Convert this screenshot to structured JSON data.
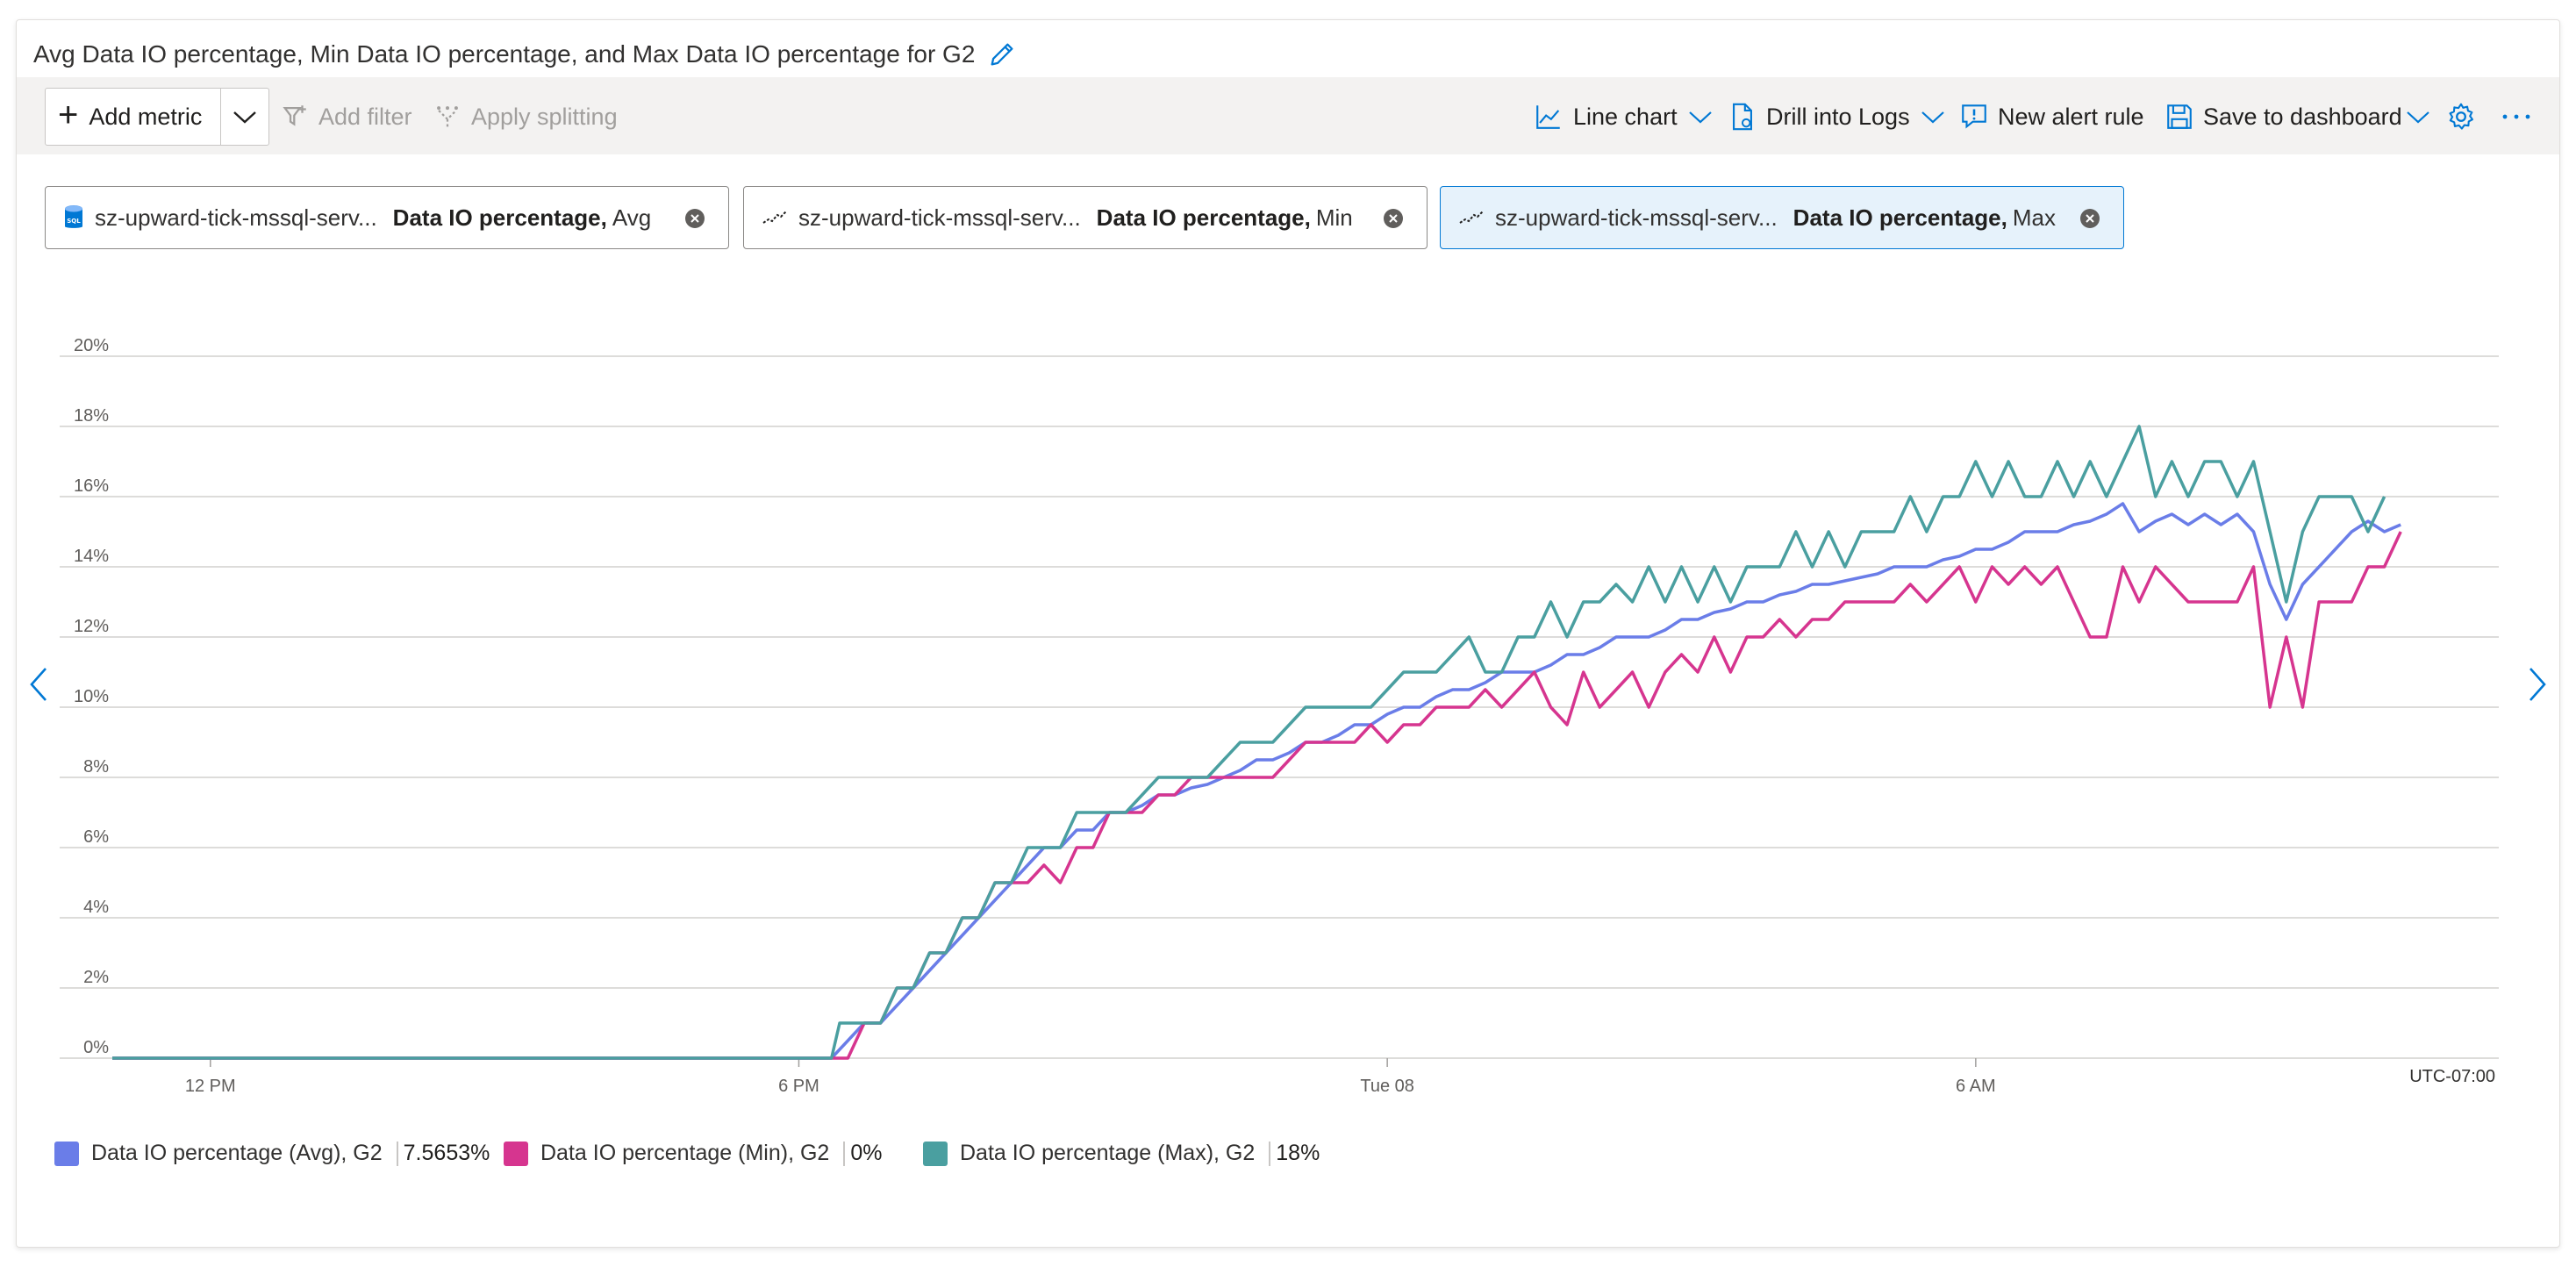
{
  "title": "Avg Data IO percentage, Min Data IO percentage, and Max Data IO percentage for G2",
  "icons": {
    "edit": "pencil-icon",
    "more": "ellipsis-icon",
    "settings": "gear-icon"
  },
  "toolbar": {
    "add_metric": "Add metric",
    "add_filter": "Add filter",
    "apply_splitting": "Apply splitting",
    "line_chart": "Line chart",
    "drill_into_logs": "Drill into Logs",
    "new_alert_rule": "New alert rule",
    "save_to_dashboard": "Save to dashboard"
  },
  "pills": [
    {
      "resource": "sz-upward-tick-mssql-serv...",
      "metric": "Data IO percentage,",
      "agg": "Avg",
      "icon": "sql-database-icon",
      "active": false
    },
    {
      "resource": "sz-upward-tick-mssql-serv...",
      "metric": "Data IO percentage,",
      "agg": "Min",
      "icon": "metric-line-icon",
      "active": false
    },
    {
      "resource": "sz-upward-tick-mssql-serv...",
      "metric": "Data IO percentage,",
      "agg": "Max",
      "icon": "metric-line-icon",
      "active": true
    }
  ],
  "timezone": "UTC-07:00",
  "legend": [
    {
      "label": "Data IO percentage (Avg), G2",
      "value": "7.5653%",
      "color": "#6a7de8"
    },
    {
      "label": "Data IO percentage (Min), G2",
      "value": "0%",
      "color": "#d6358f"
    },
    {
      "label": "Data IO percentage (Max), G2",
      "value": "18%",
      "color": "#4a9fa0"
    }
  ],
  "chart_data": {
    "type": "line",
    "x_ticks": [
      {
        "label": "12 PM",
        "t": 60
      },
      {
        "label": "6 PM",
        "t": 420
      },
      {
        "label": "Tue 08",
        "t": 780
      },
      {
        "label": "6 AM",
        "t": 1140
      }
    ],
    "y_ticks": [
      "0%",
      "2%",
      "4%",
      "6%",
      "8%",
      "10%",
      "12%",
      "14%",
      "16%",
      "18%",
      "20%"
    ],
    "ylim": [
      0,
      20
    ],
    "xlim": [
      0,
      1460
    ],
    "grid": true,
    "series": [
      {
        "name": "Data IO percentage (Avg), G2",
        "color": "#6a7de8",
        "points": [
          [
            0,
            0
          ],
          [
            440,
            0
          ],
          [
            450,
            0.5
          ],
          [
            460,
            1
          ],
          [
            470,
            1
          ],
          [
            480,
            1.5
          ],
          [
            490,
            2
          ],
          [
            500,
            2.5
          ],
          [
            510,
            3
          ],
          [
            520,
            3.5
          ],
          [
            530,
            4
          ],
          [
            540,
            4.5
          ],
          [
            550,
            5
          ],
          [
            560,
            5.5
          ],
          [
            570,
            6
          ],
          [
            580,
            6
          ],
          [
            590,
            6.5
          ],
          [
            600,
            6.5
          ],
          [
            610,
            7
          ],
          [
            620,
            7
          ],
          [
            630,
            7.2
          ],
          [
            640,
            7.5
          ],
          [
            650,
            7.5
          ],
          [
            660,
            7.7
          ],
          [
            670,
            7.8
          ],
          [
            680,
            8
          ],
          [
            690,
            8.2
          ],
          [
            700,
            8.5
          ],
          [
            710,
            8.5
          ],
          [
            720,
            8.7
          ],
          [
            730,
            9
          ],
          [
            740,
            9
          ],
          [
            750,
            9.2
          ],
          [
            760,
            9.5
          ],
          [
            770,
            9.5
          ],
          [
            780,
            9.8
          ],
          [
            790,
            10
          ],
          [
            800,
            10
          ],
          [
            810,
            10.3
          ],
          [
            820,
            10.5
          ],
          [
            830,
            10.5
          ],
          [
            840,
            10.7
          ],
          [
            850,
            11
          ],
          [
            860,
            11
          ],
          [
            870,
            11
          ],
          [
            880,
            11.2
          ],
          [
            890,
            11.5
          ],
          [
            900,
            11.5
          ],
          [
            910,
            11.7
          ],
          [
            920,
            12
          ],
          [
            930,
            12
          ],
          [
            940,
            12
          ],
          [
            950,
            12.2
          ],
          [
            960,
            12.5
          ],
          [
            970,
            12.5
          ],
          [
            980,
            12.7
          ],
          [
            990,
            12.8
          ],
          [
            1000,
            13
          ],
          [
            1010,
            13
          ],
          [
            1020,
            13.2
          ],
          [
            1030,
            13.3
          ],
          [
            1040,
            13.5
          ],
          [
            1050,
            13.5
          ],
          [
            1060,
            13.6
          ],
          [
            1070,
            13.7
          ],
          [
            1080,
            13.8
          ],
          [
            1090,
            14
          ],
          [
            1100,
            14
          ],
          [
            1110,
            14
          ],
          [
            1120,
            14.2
          ],
          [
            1130,
            14.3
          ],
          [
            1140,
            14.5
          ],
          [
            1150,
            14.5
          ],
          [
            1160,
            14.7
          ],
          [
            1170,
            15
          ],
          [
            1180,
            15
          ],
          [
            1190,
            15
          ],
          [
            1200,
            15.2
          ],
          [
            1210,
            15.3
          ],
          [
            1220,
            15.5
          ],
          [
            1230,
            15.8
          ],
          [
            1240,
            15
          ],
          [
            1250,
            15.3
          ],
          [
            1260,
            15.5
          ],
          [
            1270,
            15.2
          ],
          [
            1280,
            15.5
          ],
          [
            1290,
            15.2
          ],
          [
            1300,
            15.5
          ],
          [
            1310,
            15
          ],
          [
            1320,
            13.5
          ],
          [
            1330,
            12.5
          ],
          [
            1340,
            13.5
          ],
          [
            1350,
            14
          ],
          [
            1360,
            14.5
          ],
          [
            1370,
            15
          ],
          [
            1380,
            15.3
          ],
          [
            1390,
            15
          ],
          [
            1400,
            15.2
          ]
        ]
      },
      {
        "name": "Data IO percentage (Min), G2",
        "color": "#d6358f",
        "points": [
          [
            0,
            0
          ],
          [
            450,
            0
          ],
          [
            460,
            1
          ],
          [
            470,
            1
          ],
          [
            480,
            2
          ],
          [
            490,
            2
          ],
          [
            500,
            3
          ],
          [
            510,
            3
          ],
          [
            520,
            4
          ],
          [
            530,
            4
          ],
          [
            540,
            5
          ],
          [
            550,
            5
          ],
          [
            560,
            5
          ],
          [
            570,
            5.5
          ],
          [
            580,
            5
          ],
          [
            590,
            6
          ],
          [
            600,
            6
          ],
          [
            610,
            7
          ],
          [
            620,
            7
          ],
          [
            630,
            7
          ],
          [
            640,
            7.5
          ],
          [
            650,
            7.5
          ],
          [
            660,
            8
          ],
          [
            670,
            8
          ],
          [
            680,
            8
          ],
          [
            690,
            8
          ],
          [
            700,
            8
          ],
          [
            710,
            8
          ],
          [
            720,
            8.5
          ],
          [
            730,
            9
          ],
          [
            740,
            9
          ],
          [
            750,
            9
          ],
          [
            760,
            9
          ],
          [
            770,
            9.5
          ],
          [
            780,
            9
          ],
          [
            790,
            9.5
          ],
          [
            800,
            9.5
          ],
          [
            810,
            10
          ],
          [
            820,
            10
          ],
          [
            830,
            10
          ],
          [
            840,
            10.5
          ],
          [
            850,
            10
          ],
          [
            860,
            10.5
          ],
          [
            870,
            11
          ],
          [
            880,
            10
          ],
          [
            890,
            9.5
          ],
          [
            900,
            11
          ],
          [
            910,
            10
          ],
          [
            920,
            10.5
          ],
          [
            930,
            11
          ],
          [
            940,
            10
          ],
          [
            950,
            11
          ],
          [
            960,
            11.5
          ],
          [
            970,
            11
          ],
          [
            980,
            12
          ],
          [
            990,
            11
          ],
          [
            1000,
            12
          ],
          [
            1010,
            12
          ],
          [
            1020,
            12.5
          ],
          [
            1030,
            12
          ],
          [
            1040,
            12.5
          ],
          [
            1050,
            12.5
          ],
          [
            1060,
            13
          ],
          [
            1070,
            13
          ],
          [
            1080,
            13
          ],
          [
            1090,
            13
          ],
          [
            1100,
            13.5
          ],
          [
            1110,
            13
          ],
          [
            1120,
            13.5
          ],
          [
            1130,
            14
          ],
          [
            1140,
            13
          ],
          [
            1150,
            14
          ],
          [
            1160,
            13.5
          ],
          [
            1170,
            14
          ],
          [
            1180,
            13.5
          ],
          [
            1190,
            14
          ],
          [
            1200,
            13
          ],
          [
            1210,
            12
          ],
          [
            1220,
            12
          ],
          [
            1230,
            14
          ],
          [
            1240,
            13
          ],
          [
            1250,
            14
          ],
          [
            1260,
            13.5
          ],
          [
            1270,
            13
          ],
          [
            1280,
            13
          ],
          [
            1290,
            13
          ],
          [
            1300,
            13
          ],
          [
            1310,
            14
          ],
          [
            1320,
            10
          ],
          [
            1330,
            12
          ],
          [
            1340,
            10
          ],
          [
            1350,
            13
          ],
          [
            1360,
            13
          ],
          [
            1370,
            13
          ],
          [
            1380,
            14
          ],
          [
            1390,
            14
          ],
          [
            1400,
            15
          ]
        ]
      },
      {
        "name": "Data IO percentage (Max), G2",
        "color": "#4a9fa0",
        "points": [
          [
            0,
            0
          ],
          [
            440,
            0
          ],
          [
            445,
            1
          ],
          [
            460,
            1
          ],
          [
            470,
            1
          ],
          [
            480,
            2
          ],
          [
            490,
            2
          ],
          [
            500,
            3
          ],
          [
            510,
            3
          ],
          [
            520,
            4
          ],
          [
            530,
            4
          ],
          [
            540,
            5
          ],
          [
            550,
            5
          ],
          [
            560,
            6
          ],
          [
            570,
            6
          ],
          [
            580,
            6
          ],
          [
            590,
            7
          ],
          [
            600,
            7
          ],
          [
            610,
            7
          ],
          [
            620,
            7
          ],
          [
            630,
            7.5
          ],
          [
            640,
            8
          ],
          [
            650,
            8
          ],
          [
            660,
            8
          ],
          [
            670,
            8
          ],
          [
            680,
            8.5
          ],
          [
            690,
            9
          ],
          [
            700,
            9
          ],
          [
            710,
            9
          ],
          [
            720,
            9.5
          ],
          [
            730,
            10
          ],
          [
            740,
            10
          ],
          [
            750,
            10
          ],
          [
            760,
            10
          ],
          [
            770,
            10
          ],
          [
            780,
            10.5
          ],
          [
            790,
            11
          ],
          [
            800,
            11
          ],
          [
            810,
            11
          ],
          [
            820,
            11.5
          ],
          [
            830,
            12
          ],
          [
            840,
            11
          ],
          [
            850,
            11
          ],
          [
            860,
            12
          ],
          [
            870,
            12
          ],
          [
            880,
            13
          ],
          [
            890,
            12
          ],
          [
            900,
            13
          ],
          [
            910,
            13
          ],
          [
            920,
            13.5
          ],
          [
            930,
            13
          ],
          [
            940,
            14
          ],
          [
            950,
            13
          ],
          [
            960,
            14
          ],
          [
            970,
            13
          ],
          [
            980,
            14
          ],
          [
            990,
            13
          ],
          [
            1000,
            14
          ],
          [
            1010,
            14
          ],
          [
            1020,
            14
          ],
          [
            1030,
            15
          ],
          [
            1040,
            14
          ],
          [
            1050,
            15
          ],
          [
            1060,
            14
          ],
          [
            1070,
            15
          ],
          [
            1080,
            15
          ],
          [
            1090,
            15
          ],
          [
            1100,
            16
          ],
          [
            1110,
            15
          ],
          [
            1120,
            16
          ],
          [
            1130,
            16
          ],
          [
            1140,
            17
          ],
          [
            1150,
            16
          ],
          [
            1160,
            17
          ],
          [
            1170,
            16
          ],
          [
            1180,
            16
          ],
          [
            1190,
            17
          ],
          [
            1200,
            16
          ],
          [
            1210,
            17
          ],
          [
            1220,
            16
          ],
          [
            1230,
            17
          ],
          [
            1240,
            18
          ],
          [
            1250,
            16
          ],
          [
            1260,
            17
          ],
          [
            1270,
            16
          ],
          [
            1280,
            17
          ],
          [
            1290,
            17
          ],
          [
            1300,
            16
          ],
          [
            1310,
            17
          ],
          [
            1320,
            15
          ],
          [
            1330,
            13
          ],
          [
            1340,
            15
          ],
          [
            1350,
            16
          ],
          [
            1360,
            16
          ],
          [
            1370,
            16
          ],
          [
            1380,
            15
          ],
          [
            1390,
            16
          ]
        ]
      }
    ]
  }
}
